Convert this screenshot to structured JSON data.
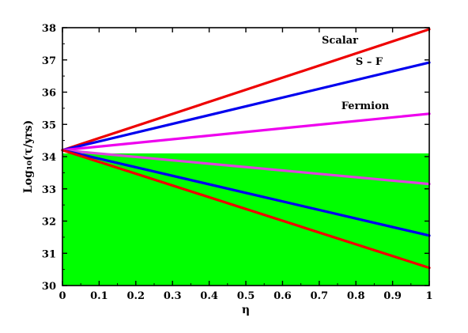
{
  "chart_data": {
    "type": "line",
    "xlabel": "η",
    "ylabel": "Log₁₀(τ/yrs)",
    "xlim": [
      0,
      1
    ],
    "ylim": [
      30,
      38
    ],
    "xticks": [
      "0",
      "0.1",
      "0.2",
      "0.3",
      "0.4",
      "0.5",
      "0.6",
      "0.7",
      "0.8",
      "0.9",
      "1"
    ],
    "yticks": [
      "30",
      "31",
      "32",
      "33",
      "34",
      "35",
      "36",
      "37",
      "38"
    ],
    "shaded_region": {
      "color": "#00ff00",
      "y_range": [
        30,
        34.1
      ],
      "x_range": [
        0,
        1
      ]
    },
    "series": [
      {
        "name": "Scalar",
        "color": "#ee0000",
        "x": [
          0,
          1
        ],
        "y": [
          34.2,
          37.95
        ]
      },
      {
        "name": "S – F",
        "color": "#0000ee",
        "x": [
          0,
          1
        ],
        "y": [
          34.2,
          36.92
        ]
      },
      {
        "name": "Fermion",
        "color": "#ee00ee",
        "x": [
          0,
          1
        ],
        "y": [
          34.2,
          35.33
        ]
      },
      {
        "color": "#dd44dd",
        "x": [
          0,
          1
        ],
        "y": [
          34.2,
          33.15
        ]
      },
      {
        "color": "#0000ee",
        "x": [
          0,
          1
        ],
        "y": [
          34.2,
          31.55
        ]
      },
      {
        "color": "#ee0000",
        "x": [
          0,
          1
        ],
        "y": [
          34.2,
          30.55
        ]
      }
    ]
  }
}
